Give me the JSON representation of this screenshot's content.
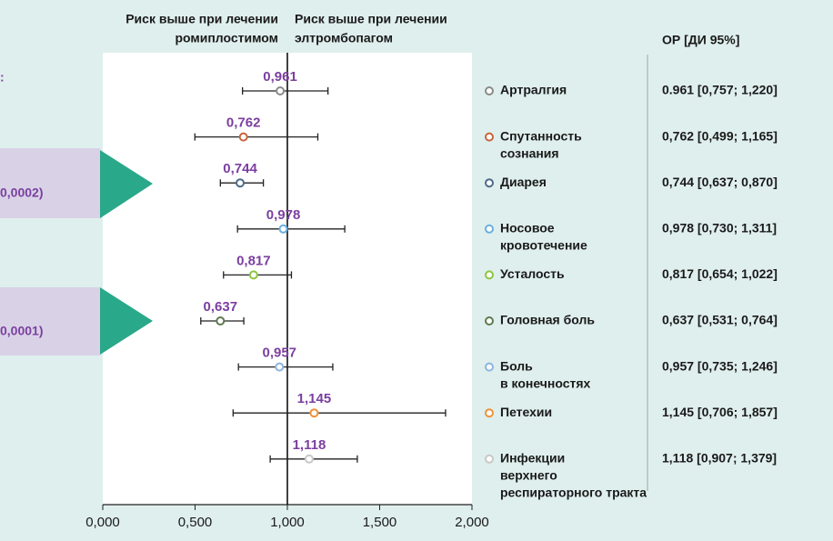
{
  "chart_data": {
    "type": "forest",
    "header_left": [
      "Риск выше при лечении",
      "ромиплостимом"
    ],
    "header_right": [
      "Риск выше при лечении",
      "элтромбопагом"
    ],
    "table_header": "ОР [ДИ 95%]",
    "side_labels": [
      ":",
      "0,0002)",
      "0,0001)"
    ],
    "categories": [
      [
        "Артралгия"
      ],
      [
        "Спутанность",
        "сознания"
      ],
      [
        "Диарея"
      ],
      [
        "Носовое",
        "кровотечение"
      ],
      [
        "Усталость"
      ],
      [
        "Головная боль"
      ],
      [
        "Боль",
        "в конечностях"
      ],
      [
        "Петехии"
      ],
      [
        "Инфекции",
        "верхнего",
        "респираторного тракта"
      ]
    ],
    "values": [
      0.961,
      0.762,
      0.744,
      0.978,
      0.817,
      0.637,
      0.957,
      1.145,
      1.118
    ],
    "value_labels": [
      "0,961",
      "0,762",
      "0,744",
      "0,978",
      "0,817",
      "0,637",
      "0,957",
      "1,145",
      "1,118"
    ],
    "ci_low": [
      0.757,
      0.499,
      0.637,
      0.73,
      0.654,
      0.531,
      0.735,
      0.706,
      0.907
    ],
    "ci_high": [
      1.22,
      1.165,
      0.87,
      1.311,
      1.022,
      0.764,
      1.246,
      1.857,
      1.379
    ],
    "ci_labels": [
      "0.961 [0,757; 1,220]",
      "0,762 [0,499; 1,165]",
      "0,744 [0,637; 0,870]",
      "0,978 [0,730; 1,311]",
      "0,817 [0,654; 1,022]",
      "0,637 [0,531; 0,764]",
      "0,957 [0,735; 1,246]",
      "1,145 [0,706; 1,857]",
      "1,118 [0,907; 1,379]"
    ],
    "colors": [
      "#8a8a8a",
      "#c8643a",
      "#4d6a8a",
      "#6ab0e0",
      "#8cc63f",
      "#5f7a4f",
      "#8ab4e0",
      "#f0913a",
      "#c8c8c8"
    ],
    "reference": 1,
    "xlim": [
      0,
      2
    ],
    "xticks": [
      {
        "value": 0,
        "label": "0,000"
      },
      {
        "value": 0.5,
        "label": "0,500"
      },
      {
        "value": 1,
        "label": "1,000"
      },
      {
        "value": 1.5,
        "label": "1,500"
      },
      {
        "value": 2,
        "label": "2,000"
      }
    ]
  }
}
